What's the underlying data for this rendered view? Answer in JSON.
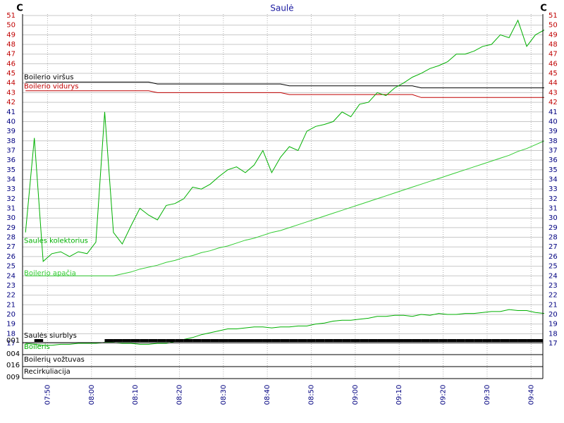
{
  "chart_data": {
    "type": "line",
    "title": "Saulė",
    "y_unit_left": "C",
    "y_unit_right": "C",
    "x": [
      "07:45",
      "07:47",
      "07:49",
      "07:51",
      "07:53",
      "07:55",
      "07:57",
      "07:59",
      "08:01",
      "08:03",
      "08:05",
      "08:07",
      "08:09",
      "08:11",
      "08:13",
      "08:15",
      "08:17",
      "08:19",
      "08:21",
      "08:23",
      "08:25",
      "08:27",
      "08:29",
      "08:31",
      "08:33",
      "08:35",
      "08:37",
      "08:39",
      "08:41",
      "08:43",
      "08:45",
      "08:47",
      "08:49",
      "08:51",
      "08:53",
      "08:55",
      "08:57",
      "08:59",
      "09:01",
      "09:03",
      "09:05",
      "09:07",
      "09:09",
      "09:11",
      "09:13",
      "09:15",
      "09:17",
      "09:19",
      "09:21",
      "09:23",
      "09:25",
      "09:27",
      "09:29",
      "09:31",
      "09:33",
      "09:35",
      "09:37",
      "09:39",
      "09:41",
      "09:43"
    ],
    "xlim": [
      "07:44",
      "09:43"
    ],
    "xticks": [
      "07:50",
      "08:00",
      "08:10",
      "08:20",
      "08:30",
      "08:40",
      "08:50",
      "09:00",
      "09:10",
      "09:20",
      "09:30",
      "09:40"
    ],
    "ylim": [
      17,
      51
    ],
    "yticks": [
      17,
      18,
      19,
      20,
      21,
      22,
      23,
      24,
      25,
      26,
      27,
      28,
      29,
      30,
      31,
      32,
      33,
      34,
      35,
      36,
      37,
      38,
      39,
      40,
      41,
      42,
      43,
      44,
      45,
      46,
      47,
      48,
      49,
      50,
      51
    ],
    "upper_tick_color": "#c00000",
    "lower_tick_color": "#000080",
    "tick_color_split": 42,
    "grid": true,
    "series": [
      {
        "name": "Boilerio viršus",
        "color": "#000000",
        "values": [
          44.1,
          44.1,
          44.1,
          44.1,
          44.1,
          44.1,
          44.1,
          44.1,
          44.1,
          44.1,
          44.1,
          44.1,
          44.1,
          44.1,
          44.1,
          43.9,
          43.9,
          43.9,
          43.9,
          43.9,
          43.9,
          43.9,
          43.9,
          43.9,
          43.9,
          43.9,
          43.9,
          43.9,
          43.9,
          43.9,
          43.7,
          43.7,
          43.7,
          43.7,
          43.7,
          43.7,
          43.7,
          43.7,
          43.7,
          43.7,
          43.7,
          43.7,
          43.7,
          43.7,
          43.7,
          43.5,
          43.5,
          43.5,
          43.5,
          43.5,
          43.5,
          43.5,
          43.5,
          43.5,
          43.5,
          43.5,
          43.5,
          43.5,
          43.5,
          43.5
        ]
      },
      {
        "name": "Boilerio vidurys",
        "color": "#c00000",
        "values": [
          43.2,
          43.2,
          43.2,
          43.2,
          43.2,
          43.2,
          43.2,
          43.2,
          43.2,
          43.2,
          43.2,
          43.2,
          43.2,
          43.2,
          43.2,
          43.0,
          43.0,
          43.0,
          43.0,
          43.0,
          43.0,
          43.0,
          43.0,
          43.0,
          43.0,
          43.0,
          43.0,
          43.0,
          43.0,
          43.0,
          42.8,
          42.8,
          42.8,
          42.8,
          42.8,
          42.8,
          42.8,
          42.8,
          42.8,
          42.8,
          42.8,
          42.8,
          42.8,
          42.8,
          42.8,
          42.5,
          42.5,
          42.5,
          42.5,
          42.5,
          42.5,
          42.5,
          42.5,
          42.5,
          42.5,
          42.5,
          42.5,
          42.5,
          42.5,
          42.5
        ]
      },
      {
        "name": "Saulės kolektorius",
        "color": "#00b000",
        "values": [
          28.5,
          38.3,
          25.5,
          26.3,
          26.5,
          26,
          26.5,
          26.3,
          27.5,
          41,
          28.5,
          27.3,
          29.2,
          31,
          30.3,
          29.8,
          31.3,
          31.5,
          32,
          33.2,
          33,
          33.5,
          34.3,
          35,
          35.3,
          34.7,
          35.5,
          37,
          34.7,
          36.3,
          37.4,
          37,
          39,
          39.5,
          39.7,
          40,
          41,
          40.5,
          41.8,
          42,
          43,
          42.7,
          43.5,
          44,
          44.6,
          45,
          45.5,
          45.8,
          46.2,
          47,
          47,
          47.3,
          47.8,
          48,
          49,
          48.7,
          50.5,
          47.8,
          49,
          49.5
        ]
      },
      {
        "name": "Boilerio apačia",
        "color": "#33cc33",
        "values": [
          24,
          24,
          24,
          24,
          24,
          24,
          24,
          24,
          24,
          24,
          24,
          24.2,
          24.4,
          24.7,
          24.9,
          25.1,
          25.4,
          25.6,
          25.9,
          26.1,
          26.4,
          26.6,
          26.9,
          27.1,
          27.4,
          27.7,
          27.9,
          28.2,
          28.5,
          28.7,
          29,
          29.3,
          29.6,
          29.9,
          30.2,
          30.5,
          30.8,
          31.1,
          31.4,
          31.7,
          32,
          32.3,
          32.6,
          32.9,
          33.2,
          33.5,
          33.8,
          34.1,
          34.4,
          34.7,
          35,
          35.3,
          35.6,
          35.9,
          36.2,
          36.5,
          36.9,
          37.2,
          37.6,
          38
        ]
      },
      {
        "name": "Boileris",
        "color": "#00b000",
        "values": [
          17,
          16.9,
          16.8,
          16.8,
          16.9,
          16.9,
          17,
          17,
          17,
          17.1,
          17.1,
          17,
          17,
          16.9,
          16.9,
          17,
          17,
          17.2,
          17.4,
          17.6,
          17.9,
          18.1,
          18.3,
          18.5,
          18.5,
          18.6,
          18.7,
          18.7,
          18.6,
          18.7,
          18.7,
          18.8,
          18.8,
          19,
          19.1,
          19.3,
          19.4,
          19.4,
          19.5,
          19.6,
          19.8,
          19.8,
          19.9,
          19.9,
          19.8,
          20,
          19.9,
          20.1,
          20,
          20,
          20.1,
          20.1,
          20.2,
          20.3,
          20.3,
          20.5,
          20.4,
          20.4,
          20.2,
          20.1
        ]
      }
    ],
    "pump": {
      "name": "Saulės siurblys",
      "color": "#000000",
      "values": [
        0,
        1,
        0,
        0,
        0,
        0,
        0,
        0,
        0,
        1,
        1,
        1,
        1,
        1,
        1,
        1,
        1,
        1,
        1,
        1,
        1,
        1,
        1,
        1,
        1,
        1,
        1,
        1,
        1,
        1,
        1,
        1,
        1,
        1,
        1,
        1,
        1,
        1,
        1,
        1,
        1,
        1,
        1,
        1,
        1,
        1,
        1,
        1,
        1,
        1,
        1,
        1,
        1,
        1,
        1,
        1,
        1,
        1,
        1,
        1
      ]
    },
    "lanes": [
      "Boilerių vožtuvas",
      "Recirkuliacija"
    ],
    "lane_codes": [
      "001",
      "004",
      "016",
      "009"
    ]
  }
}
